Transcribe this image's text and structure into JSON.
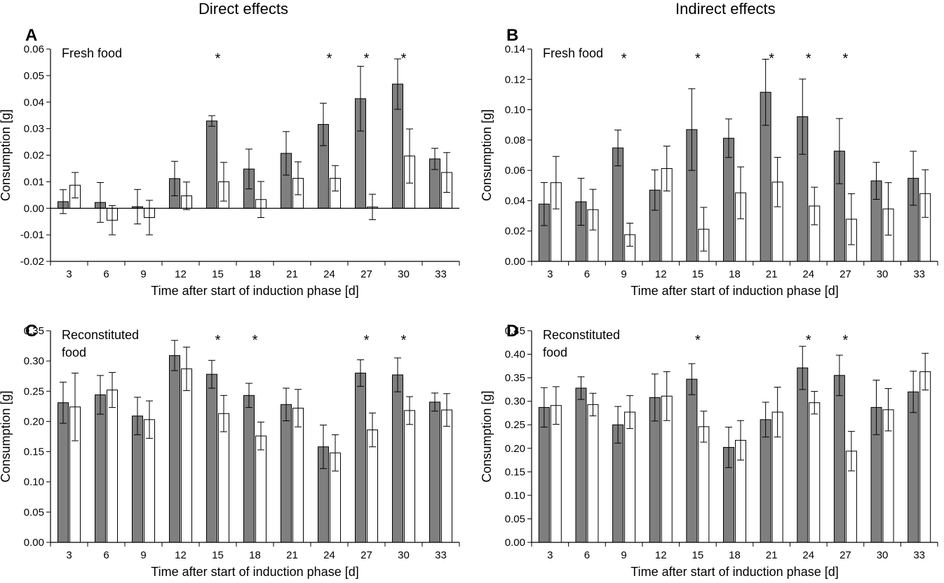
{
  "columns": {
    "left_title": "Direct effects",
    "right_title": "Indirect effects"
  },
  "colors": {
    "treatment_bar": "#7f7f7f",
    "control_bar": "#ffffff",
    "stroke": "#000000"
  },
  "chart_data": [
    {
      "panel": "A",
      "type": "bar",
      "annotation": "Fresh food",
      "xlabel": "Time after start of induction phase [d]",
      "ylabel": "Consumption [g]",
      "ylim": [
        -0.02,
        0.06
      ],
      "yticks": [
        -0.02,
        -0.01,
        0.0,
        0.01,
        0.02,
        0.03,
        0.04,
        0.05,
        0.06
      ],
      "ytick_labels": [
        "-0.02",
        "-0.01",
        "0.00",
        "0.01",
        "0.02",
        "0.03",
        "0.04",
        "0.05",
        "0.06"
      ],
      "categories": [
        "3",
        "6",
        "9",
        "12",
        "15",
        "18",
        "21",
        "24",
        "27",
        "30",
        "33"
      ],
      "series": [
        {
          "values": [
            0.0025,
            0.0022,
            0.0006,
            0.0112,
            0.0329,
            0.0148,
            0.0207,
            0.0316,
            0.0413,
            0.0468,
            0.0186
          ],
          "errors": [
            0.0045,
            0.0075,
            0.0065,
            0.0065,
            0.002,
            0.0075,
            0.0082,
            0.008,
            0.0122,
            0.0095,
            0.004
          ]
        },
        {
          "values": [
            0.0087,
            -0.0045,
            -0.0035,
            0.0047,
            0.01,
            0.0033,
            0.0113,
            0.0113,
            0.0005,
            0.0197,
            0.0135
          ],
          "errors": [
            0.0048,
            0.0055,
            0.0065,
            0.0052,
            0.0073,
            0.0068,
            0.0062,
            0.0048,
            0.0048,
            0.0102,
            0.0075
          ]
        }
      ],
      "significance": [
        "",
        "",
        "",
        "",
        "*",
        "",
        "",
        "*",
        "*",
        "*",
        ""
      ]
    },
    {
      "panel": "B",
      "type": "bar",
      "annotation": "Fresh food",
      "xlabel": "Time after start of induction phase [d]",
      "ylabel": "Consumption [g]",
      "ylim": [
        0.0,
        0.14
      ],
      "yticks": [
        0.0,
        0.02,
        0.04,
        0.06,
        0.08,
        0.1,
        0.12,
        0.14
      ],
      "ytick_labels": [
        "0.00",
        "0.02",
        "0.04",
        "0.06",
        "0.08",
        "0.10",
        "0.12",
        "0.14"
      ],
      "categories": [
        "3",
        "6",
        "9",
        "12",
        "15",
        "18",
        "21",
        "24",
        "27",
        "30",
        "33"
      ],
      "series": [
        {
          "values": [
            0.0378,
            0.0393,
            0.0748,
            0.047,
            0.0869,
            0.0812,
            0.1115,
            0.0954,
            0.0727,
            0.0531,
            0.0548
          ],
          "errors": [
            0.0142,
            0.0155,
            0.0118,
            0.0133,
            0.0269,
            0.0127,
            0.0218,
            0.0248,
            0.0215,
            0.0122,
            0.0178
          ]
        },
        {
          "values": [
            0.0519,
            0.0341,
            0.0176,
            0.0612,
            0.0212,
            0.0452,
            0.0523,
            0.0365,
            0.0278,
            0.0346,
            0.0447
          ],
          "errors": [
            0.0173,
            0.0134,
            0.0076,
            0.0148,
            0.0144,
            0.0171,
            0.0163,
            0.0124,
            0.0168,
            0.0173,
            0.0157
          ]
        }
      ],
      "significance": [
        "",
        "",
        "*",
        "",
        "*",
        "",
        "*",
        "*",
        "*",
        "",
        ""
      ]
    },
    {
      "panel": "C",
      "type": "bar",
      "annotation": [
        "Reconstituted",
        "food"
      ],
      "xlabel": "Time after start of induction phase [d]",
      "ylabel": "Consumption [g]",
      "ylim": [
        0.0,
        0.35
      ],
      "yticks": [
        0.0,
        0.05,
        0.1,
        0.15,
        0.2,
        0.25,
        0.3,
        0.35
      ],
      "ytick_labels": [
        "0.00",
        "0.05",
        "0.10",
        "0.15",
        "0.20",
        "0.25",
        "0.30",
        "0.35"
      ],
      "categories": [
        "3",
        "6",
        "9",
        "12",
        "15",
        "18",
        "21",
        "24",
        "27",
        "30",
        "33"
      ],
      "series": [
        {
          "values": [
            0.231,
            0.244,
            0.209,
            0.309,
            0.278,
            0.243,
            0.228,
            0.158,
            0.28,
            0.277,
            0.232
          ],
          "errors": [
            0.034,
            0.032,
            0.031,
            0.025,
            0.023,
            0.02,
            0.027,
            0.036,
            0.022,
            0.028,
            0.015
          ]
        },
        {
          "values": [
            0.224,
            0.252,
            0.203,
            0.287,
            0.213,
            0.176,
            0.222,
            0.148,
            0.186,
            0.218,
            0.219
          ],
          "errors": [
            0.056,
            0.029,
            0.031,
            0.036,
            0.03,
            0.023,
            0.031,
            0.03,
            0.028,
            0.023,
            0.027
          ]
        }
      ],
      "significance": [
        "",
        "",
        "",
        "",
        "*",
        "*",
        "",
        "",
        "*",
        "*",
        ""
      ]
    },
    {
      "panel": "D",
      "type": "bar",
      "annotation": [
        "Reconstituted",
        "food"
      ],
      "xlabel": "Time after start of induction phase [d]",
      "ylabel": "Consumption [g]",
      "ylim": [
        0.0,
        0.45
      ],
      "yticks": [
        0.0,
        0.05,
        0.1,
        0.15,
        0.2,
        0.25,
        0.3,
        0.35,
        0.4,
        0.45
      ],
      "ytick_labels": [
        "0.00",
        "0.05",
        "0.10",
        "0.15",
        "0.20",
        "0.25",
        "0.30",
        "0.35",
        "0.40",
        "0.45"
      ],
      "categories": [
        "3",
        "6",
        "9",
        "12",
        "15",
        "18",
        "21",
        "24",
        "27",
        "30",
        "33"
      ],
      "series": [
        {
          "values": [
            0.287,
            0.328,
            0.25,
            0.308,
            0.347,
            0.202,
            0.261,
            0.371,
            0.355,
            0.287,
            0.32
          ],
          "errors": [
            0.042,
            0.024,
            0.039,
            0.05,
            0.033,
            0.043,
            0.037,
            0.046,
            0.043,
            0.058,
            0.044
          ]
        },
        {
          "values": [
            0.291,
            0.293,
            0.277,
            0.311,
            0.246,
            0.217,
            0.277,
            0.297,
            0.194,
            0.282,
            0.363
          ],
          "errors": [
            0.04,
            0.024,
            0.035,
            0.052,
            0.033,
            0.042,
            0.053,
            0.024,
            0.042,
            0.045,
            0.039
          ]
        }
      ],
      "significance": [
        "",
        "",
        "",
        "",
        "*",
        "",
        "",
        "*",
        "*",
        "",
        ""
      ]
    }
  ]
}
